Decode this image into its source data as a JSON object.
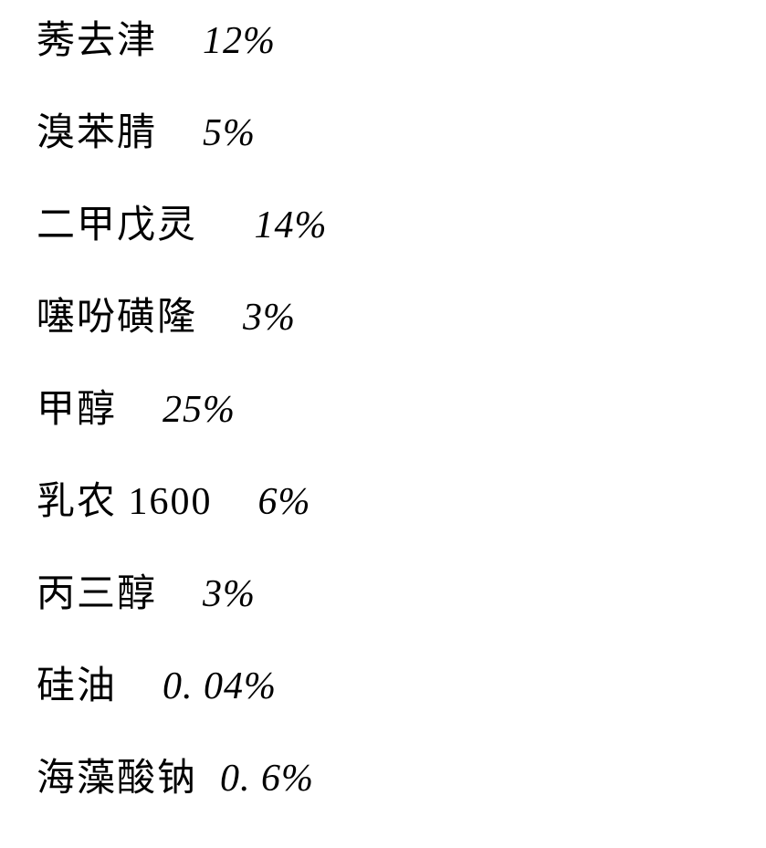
{
  "font": {
    "family_cjk": "KaiTi/STKaiti/楷体",
    "family_latin": "Times New Roman italic",
    "size_pt": 42,
    "color": "#000000",
    "background": "#ffffff"
  },
  "rows": [
    {
      "label": "莠去津",
      "gap": "    ",
      "value": "12%"
    },
    {
      "label": "溴苯腈",
      "gap": "    ",
      "value": "5%"
    },
    {
      "label": "二甲戊灵",
      "gap": "     ",
      "value": "14%"
    },
    {
      "label": "噻吩磺隆",
      "gap": "    ",
      "value": "3%"
    },
    {
      "label": "甲醇",
      "gap": "    ",
      "value": "25%"
    },
    {
      "label": "乳农 1600",
      "gap": "    ",
      "value": "6%"
    },
    {
      "label": "丙三醇",
      "gap": "    ",
      "value": "3%"
    },
    {
      "label": "硅油",
      "gap": "    ",
      "value": "0. 04%"
    },
    {
      "label": "海藻酸钠",
      "gap": "  ",
      "value": "0. 6%"
    }
  ]
}
